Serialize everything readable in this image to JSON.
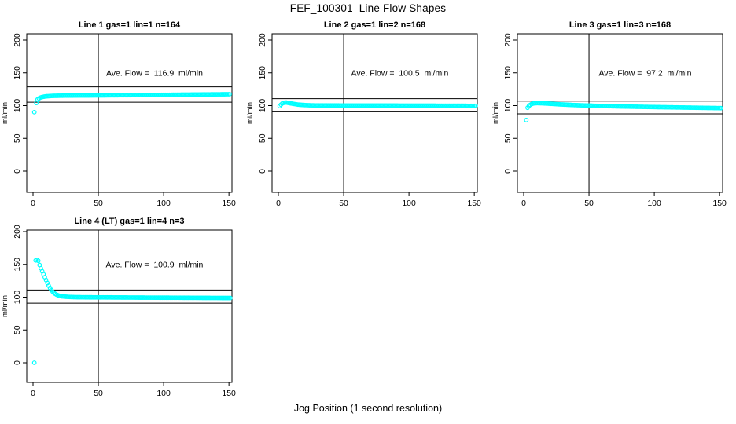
{
  "page": {
    "main_title": "FEF_100301  Line Flow Shapes",
    "x_axis_label": "Jog Position (1 second resolution)"
  },
  "chart_data": {
    "type": "scatter",
    "title": "FEF_100301  Line Flow Shapes",
    "xlabel": "Jog Position (1 second resolution)",
    "ylabel": "ml/min",
    "x_ticks": [
      0,
      50,
      100,
      150
    ],
    "y_ticks": [
      0,
      50,
      100,
      150,
      200
    ],
    "xlim": [
      -5,
      152
    ],
    "ylim": [
      -30,
      210
    ],
    "grid": "off",
    "legend": "none",
    "marker": "open-circle",
    "marker_color": "#00FFFF",
    "axis_color": "#000000",
    "vline_x": 50,
    "x_step": 1,
    "plots": [
      {
        "title": "Line 1 gas=1 lin=1 n=164",
        "n": 164,
        "ave_flow": 116.9,
        "ave_flow_text": "Ave. Flow =  116.9  ml/min",
        "ref_upper": 128.6,
        "ref_lower": 105.2,
        "outliers": [
          [
            1,
            90
          ],
          [
            2.5,
            104
          ]
        ],
        "series": [
          [
            3.5,
            109.5
          ],
          [
            5,
            111.8
          ],
          [
            7,
            113.2
          ],
          [
            10,
            114.2
          ],
          [
            15,
            114.9
          ],
          [
            25,
            115.3
          ],
          [
            50,
            115.6
          ],
          [
            90,
            116.2
          ],
          [
            130,
            117.0
          ],
          [
            151,
            117.4
          ]
        ]
      },
      {
        "title": "Line 2 gas=1 lin=2 n=168",
        "n": 168,
        "ave_flow": 100.5,
        "ave_flow_text": "Ave. Flow =  100.5  ml/min",
        "ref_upper": 110.6,
        "ref_lower": 90.5,
        "outliers": [
          [
            1,
            99.4
          ]
        ],
        "series": [
          [
            2,
            101.5
          ],
          [
            3,
            103.3
          ],
          [
            4.5,
            104.6
          ],
          [
            6,
            104.7
          ],
          [
            8,
            104.0
          ],
          [
            11,
            102.9
          ],
          [
            15,
            101.6
          ],
          [
            20,
            100.8
          ],
          [
            28,
            100.3
          ],
          [
            45,
            100.2
          ],
          [
            80,
            100.1
          ],
          [
            120,
            99.9
          ],
          [
            151,
            99.7
          ]
        ]
      },
      {
        "title": "Line 3 gas=1 lin=3 n=168",
        "n": 168,
        "ave_flow": 97.2,
        "ave_flow_text": "Ave. Flow =  97.2  ml/min",
        "ref_upper": 106.9,
        "ref_lower": 87.5,
        "outliers": [
          [
            2,
            78
          ]
        ],
        "series": [
          [
            3,
            96.8
          ],
          [
            4,
            99.5
          ],
          [
            5.5,
            102.0
          ],
          [
            7.5,
            103.4
          ],
          [
            10,
            103.8
          ],
          [
            14,
            103.6
          ],
          [
            20,
            102.9
          ],
          [
            28,
            101.9
          ],
          [
            38,
            100.9
          ],
          [
            55,
            99.7
          ],
          [
            75,
            98.7
          ],
          [
            100,
            97.8
          ],
          [
            125,
            97.0
          ],
          [
            151,
            96.2
          ]
        ]
      },
      {
        "title": "Line 4 (LT) gas=1 lin=4 n=3",
        "n": 3,
        "ave_flow": 100.9,
        "ave_flow_text": "Ave. Flow =  100.9  ml/min",
        "ref_upper": 111.0,
        "ref_lower": 90.8,
        "outliers": [
          [
            1,
            0
          ]
        ],
        "series": [
          [
            2,
            156
          ],
          [
            3,
            157
          ],
          [
            4,
            155.5
          ],
          [
            5,
            149
          ],
          [
            6,
            144
          ],
          [
            7,
            139.5
          ],
          [
            8,
            135
          ],
          [
            9,
            130.5
          ],
          [
            10,
            126
          ],
          [
            11,
            121.5
          ],
          [
            12,
            117.5
          ],
          [
            13,
            114
          ],
          [
            14,
            111
          ],
          [
            15,
            108.5
          ],
          [
            16,
            106.5
          ],
          [
            17,
            105
          ],
          [
            18,
            103.8
          ],
          [
            19,
            102.9
          ],
          [
            20,
            102.2
          ],
          [
            22,
            101.3
          ],
          [
            25,
            100.7
          ],
          [
            28,
            100.3
          ],
          [
            32,
            100.0
          ],
          [
            40,
            99.8
          ],
          [
            60,
            99.6
          ],
          [
            85,
            99.3
          ],
          [
            110,
            99.1
          ],
          [
            130,
            98.9
          ],
          [
            151,
            98.7
          ]
        ]
      }
    ]
  }
}
